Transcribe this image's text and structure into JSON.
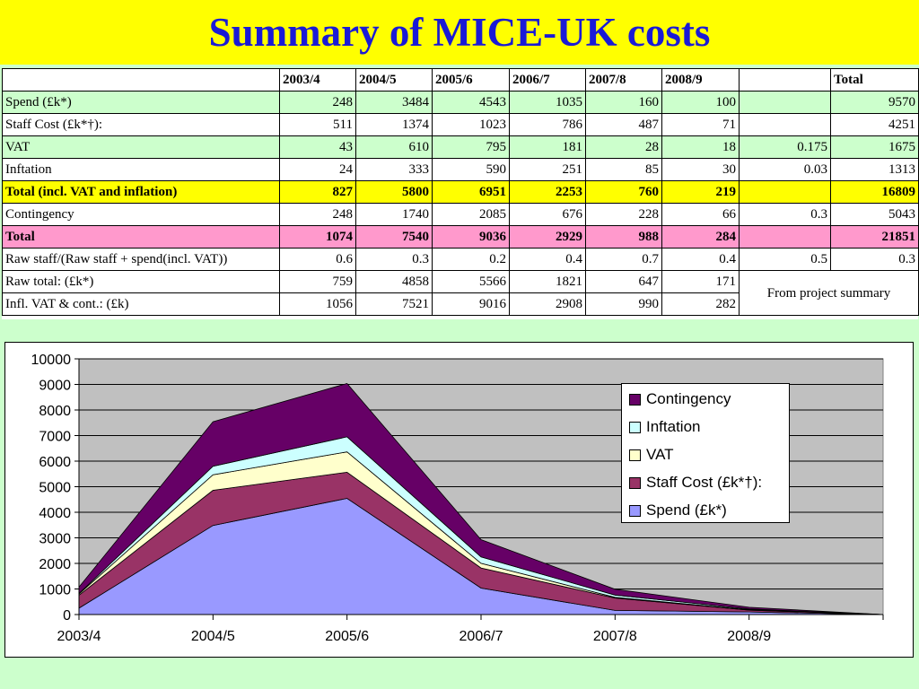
{
  "title": "Summary of MICE-UK costs",
  "table": {
    "headers": [
      "",
      "2003/4",
      "2004/5",
      "2005/6",
      "2006/7",
      "2007/8",
      "2008/9",
      "",
      "Total"
    ],
    "rows": [
      {
        "label": "Spend (£k*)",
        "values": [
          "248",
          "3484",
          "4543",
          "1035",
          "160",
          "100"
        ],
        "rate": "",
        "total": "9570",
        "style": "green"
      },
      {
        "label": "Staff Cost (£k*†):",
        "values": [
          "511",
          "1374",
          "1023",
          "786",
          "487",
          "71"
        ],
        "rate": "",
        "total": "4251",
        "style": "white"
      },
      {
        "label": "VAT",
        "values": [
          "43",
          "610",
          "795",
          "181",
          "28",
          "18"
        ],
        "rate": "0.175",
        "total": "1675",
        "style": "green"
      },
      {
        "label": "Inftation",
        "values": [
          "24",
          "333",
          "590",
          "251",
          "85",
          "30"
        ],
        "rate": "0.03",
        "total": "1313",
        "style": "white"
      },
      {
        "label": "Total (incl. VAT and inflation)",
        "values": [
          "827",
          "5800",
          "6951",
          "2253",
          "760",
          "219"
        ],
        "rate": "",
        "total": "16809",
        "style": "yellow"
      },
      {
        "label": "Contingency",
        "values": [
          "248",
          "1740",
          "2085",
          "676",
          "228",
          "66"
        ],
        "rate": "0.3",
        "total": "5043",
        "style": "white"
      },
      {
        "label": "Total",
        "values": [
          "1074",
          "7540",
          "9036",
          "2929",
          "988",
          "284"
        ],
        "rate": "",
        "total": "21851",
        "style": "pink"
      },
      {
        "label": "Raw staff/(Raw staff + spend(incl. VAT))",
        "values": [
          "0.6",
          "0.3",
          "0.2",
          "0.4",
          "0.7",
          "0.4"
        ],
        "rate": "0.5",
        "total": "0.3",
        "style": "white"
      }
    ],
    "summary_rows": [
      {
        "label": "Raw total: (£k*)",
        "values": [
          "759",
          "4858",
          "5566",
          "1821",
          "647",
          "171"
        ]
      },
      {
        "label": "Infl. VAT & cont.: (£k)",
        "values": [
          "1056",
          "7521",
          "9016",
          "2908",
          "990",
          "282"
        ]
      }
    ],
    "summary_note": "From project summary"
  },
  "chart_data": {
    "type": "area",
    "stacked": true,
    "categories": [
      "2003/4",
      "2004/5",
      "2005/6",
      "2006/7",
      "2007/8",
      "2008/9",
      ""
    ],
    "series": [
      {
        "name": "Spend (£k*)",
        "values": [
          248,
          3484,
          4543,
          1035,
          160,
          100,
          0
        ],
        "color": "#9999ff"
      },
      {
        "name": "Staff Cost (£k*†):",
        "values": [
          511,
          1374,
          1023,
          786,
          487,
          71,
          0
        ],
        "color": "#993366"
      },
      {
        "name": "VAT",
        "values": [
          43,
          610,
          795,
          181,
          28,
          18,
          0
        ],
        "color": "#ffffcc"
      },
      {
        "name": "Inftation",
        "values": [
          24,
          333,
          590,
          251,
          85,
          30,
          0
        ],
        "color": "#ccffff"
      },
      {
        "name": "Contingency",
        "values": [
          248,
          1740,
          2085,
          676,
          228,
          66,
          0
        ],
        "color": "#660066"
      }
    ],
    "legend_order": [
      "Contingency",
      "Inftation",
      "VAT",
      "Staff Cost (£k*†):",
      "Spend (£k*)"
    ],
    "ylim": [
      0,
      10000
    ],
    "yticks": [
      0,
      1000,
      2000,
      3000,
      4000,
      5000,
      6000,
      7000,
      8000,
      9000,
      10000
    ],
    "grid": true,
    "legend_position": "right",
    "plot_background": "#c0c0c0"
  }
}
